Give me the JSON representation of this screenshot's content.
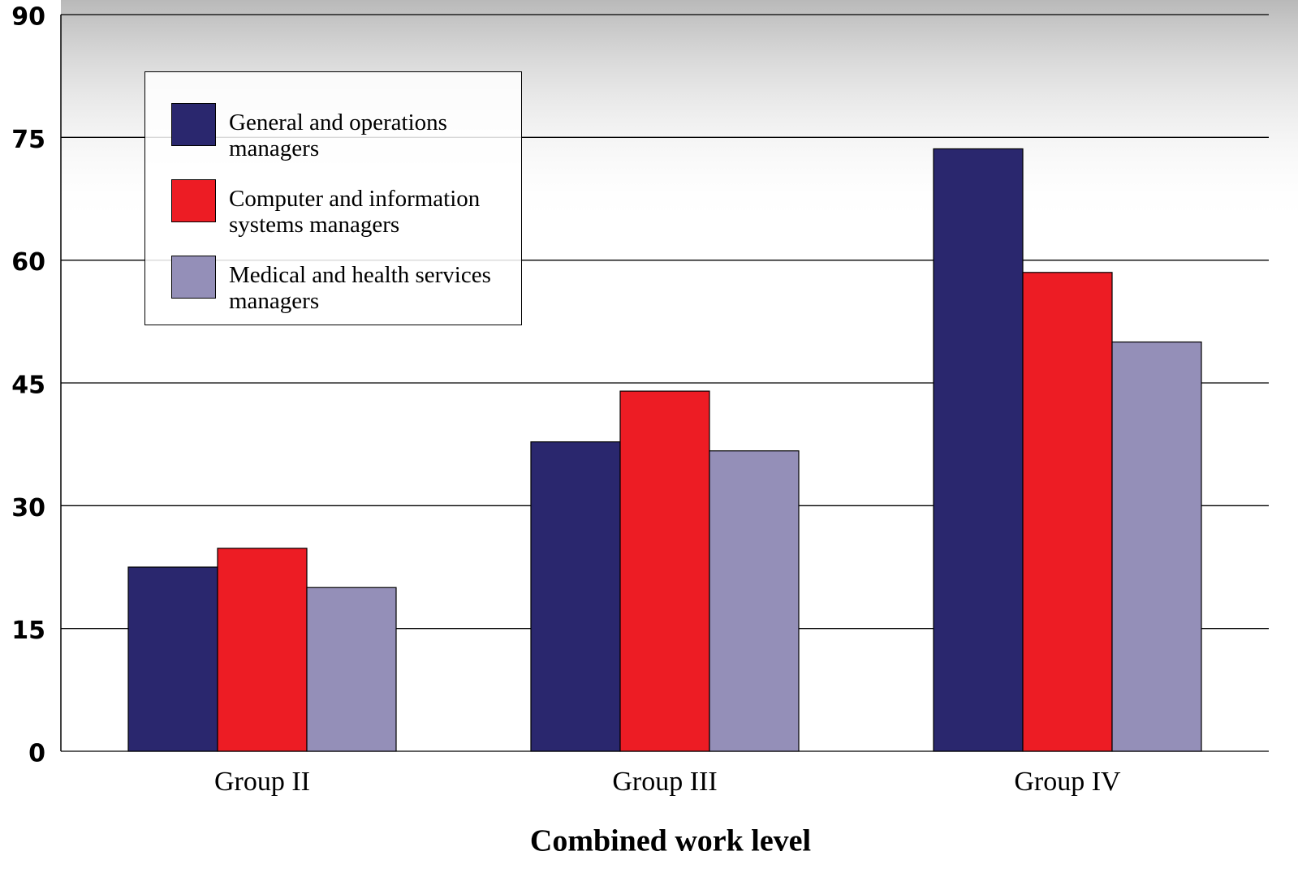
{
  "chart_data": {
    "type": "bar",
    "x_label": "Combined work level",
    "categories": [
      "Group II",
      "Group III",
      "Group IV"
    ],
    "series": [
      {
        "name": "General and operations managers",
        "color": "#2a276e",
        "values": [
          22.5,
          37.8,
          73.6
        ]
      },
      {
        "name": "Computer and information systems managers",
        "color": "#ed1c24",
        "values": [
          24.8,
          44.0,
          58.5
        ]
      },
      {
        "name": "Medical and health services managers",
        "color": "#948fb8",
        "values": [
          20.0,
          36.7,
          50.0
        ]
      }
    ],
    "ylim": [
      0,
      90
    ],
    "yticks": [
      0,
      15,
      30,
      45,
      60,
      75,
      90
    ],
    "grid": true,
    "legend": "upper left"
  }
}
